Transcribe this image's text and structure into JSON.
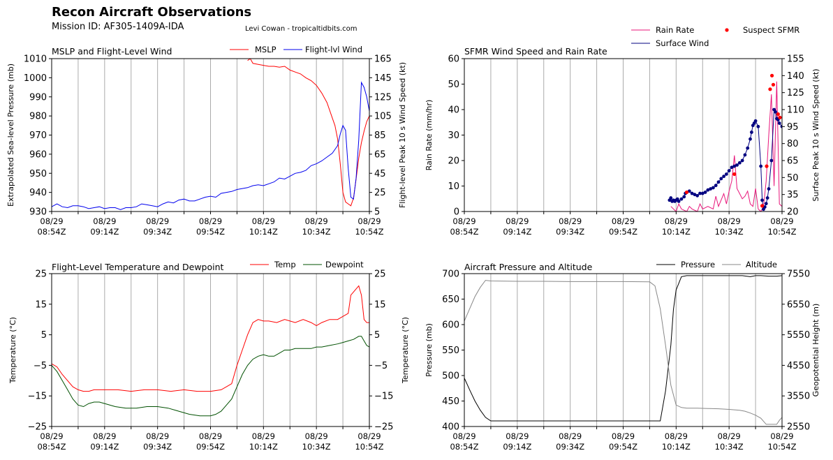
{
  "header": {
    "title": "Recon Aircraft Observations",
    "mission": "Mission ID: AF305-1409A-IDA",
    "credit": "Levi Cowan - tropicaltidbits.com"
  },
  "colors": {
    "mslp": "#ff0000",
    "wind": "#0000ee",
    "rain": "#e8157a",
    "sfmr": "#000080",
    "suspect": "#ff0000",
    "temp": "#ff0000",
    "dewpoint": "#005000",
    "pressure": "#000000",
    "altitude": "#888888",
    "grid": "#aaaaaa"
  },
  "chart_data": [
    {
      "id": "mslp_wind",
      "type": "line",
      "title": "MSLP and Flight-Level Wind",
      "xlabel": "",
      "ylabel": "Extrapolated Sea-level Pressure (mb)",
      "ylabel_right": "Flight-level Peak 10 s Wind Speed (kt)",
      "x_ticks": [
        "08/29 08:54Z",
        "08/29 09:14Z",
        "08/29 09:34Z",
        "08/29 09:54Z",
        "08/29 10:14Z",
        "08/29 10:34Z",
        "08/29 10:54Z"
      ],
      "xlim": [
        0,
        120
      ],
      "ylim": [
        930,
        1010
      ],
      "ylim_right": [
        5,
        165
      ],
      "yticks": [
        "930",
        "940",
        "950",
        "960",
        "970",
        "980",
        "990",
        "1000",
        "1010"
      ],
      "yticks_right": [
        "5",
        "25",
        "45",
        "65",
        "85",
        "105",
        "125",
        "145",
        "165"
      ],
      "legend": [
        "MSLP",
        "Flight-lvl Wind"
      ],
      "series": [
        {
          "name": "MSLP",
          "axis": "left",
          "color_key": "mslp",
          "x": [
            74,
            75,
            76,
            78,
            80,
            82,
            84,
            86,
            88,
            90,
            92,
            94,
            96,
            98,
            100,
            102,
            104,
            106,
            107,
            108,
            109,
            110,
            111,
            112,
            113,
            114,
            115,
            116,
            117,
            118,
            119,
            120
          ],
          "y": [
            1009,
            1010,
            1007.5,
            1007,
            1006.5,
            1006,
            1006,
            1005.5,
            1006,
            1004,
            1003,
            1002,
            1000,
            998.5,
            996,
            992,
            987,
            979,
            975,
            968,
            955,
            940,
            935,
            934,
            933,
            937,
            947,
            958,
            966,
            972,
            977,
            980
          ]
        },
        {
          "name": "Flight-lvl Wind",
          "axis": "right",
          "color_key": "wind",
          "x": [
            0,
            2,
            4,
            6,
            8,
            10,
            12,
            14,
            16,
            18,
            20,
            22,
            24,
            26,
            28,
            30,
            32,
            34,
            36,
            38,
            40,
            42,
            44,
            46,
            48,
            50,
            52,
            54,
            56,
            58,
            60,
            62,
            64,
            66,
            68,
            70,
            72,
            74,
            76,
            78,
            80,
            82,
            84,
            86,
            88,
            90,
            92,
            94,
            96,
            98,
            100,
            102,
            104,
            106,
            108,
            109,
            110,
            111,
            112,
            113,
            114,
            115,
            116,
            117,
            118,
            119,
            120
          ],
          "y": [
            10,
            13,
            10,
            9,
            11,
            11,
            10,
            8,
            9,
            10,
            8,
            9,
            9,
            7,
            9,
            9,
            10,
            13,
            12,
            11,
            10,
            13,
            15,
            14,
            17,
            18,
            16,
            16,
            18,
            20,
            21,
            20,
            24,
            25,
            26,
            28,
            29,
            30,
            32,
            33,
            32,
            34,
            36,
            40,
            39,
            42,
            45,
            46,
            48,
            53,
            55,
            58,
            62,
            66,
            74,
            86,
            95,
            90,
            50,
            20,
            18,
            40,
            80,
            140,
            135,
            125,
            110
          ]
        }
      ]
    },
    {
      "id": "sfmr_rain",
      "type": "line",
      "title": "SFMR Wind Speed and Rain Rate",
      "xlabel": "",
      "ylabel": "Rain Rate (mm/hr)",
      "ylabel_right": "Surface Peak 10 s Wind Speed (kt)",
      "x_ticks": [
        "08/29 08:54Z",
        "08/29 09:14Z",
        "08/29 09:34Z",
        "08/29 09:54Z",
        "08/29 10:14Z",
        "08/29 10:34Z",
        "08/29 10:54Z"
      ],
      "xlim": [
        0,
        120
      ],
      "ylim": [
        0,
        60
      ],
      "ylim_right": [
        20,
        155
      ],
      "yticks": [
        "0",
        "10",
        "20",
        "30",
        "40",
        "50",
        "60"
      ],
      "yticks_right": [
        "20",
        "35",
        "50",
        "65",
        "80",
        "95",
        "110",
        "125",
        "140",
        "155"
      ],
      "legend": [
        "Rain Rate",
        "Surface Wind",
        "Suspect SFMR"
      ],
      "series": [
        {
          "name": "Rain Rate",
          "axis": "left",
          "color_key": "rain",
          "style": "line",
          "x": [
            78,
            79,
            80,
            81,
            82,
            84,
            85,
            86,
            88,
            89,
            90,
            92,
            94,
            95,
            96,
            98,
            99,
            100,
            101,
            102,
            103,
            104,
            105,
            106,
            107,
            108,
            109,
            110,
            111,
            112,
            113,
            114,
            115,
            116,
            117,
            118,
            119,
            120
          ],
          "y": [
            2,
            1,
            0,
            3,
            1,
            0,
            2,
            1,
            0,
            3,
            1,
            2,
            1,
            6,
            2,
            7,
            3,
            8,
            12,
            22,
            9,
            7,
            5,
            6,
            8,
            3,
            2,
            9,
            1,
            0,
            2,
            12,
            30,
            46,
            10,
            51,
            3,
            2
          ]
        },
        {
          "name": "Surface Wind",
          "axis": "right",
          "color_key": "sfmr",
          "style": "dots",
          "x": [
            77.5,
            78,
            78.5,
            79,
            79.5,
            80,
            80.5,
            81,
            82,
            83,
            83.5,
            84,
            85,
            86,
            87,
            88,
            89,
            90,
            91,
            92,
            93,
            94,
            95,
            96,
            97,
            98,
            99,
            100,
            101,
            102,
            103,
            104,
            105,
            106,
            107,
            108,
            108.5,
            109,
            109.5,
            110,
            111,
            112,
            112.5,
            113,
            113.5,
            114,
            114.5,
            115,
            116,
            117,
            117.5,
            118,
            118.5,
            119,
            120
          ],
          "y": [
            30,
            32,
            29,
            30,
            29,
            30,
            31,
            29,
            31,
            33,
            36,
            37,
            38,
            36,
            35,
            34,
            36,
            36,
            37,
            39,
            40,
            41,
            43,
            46,
            49,
            51,
            53,
            56,
            59,
            60,
            61,
            63,
            65,
            70,
            76,
            84,
            90,
            96,
            98,
            100,
            95,
            60,
            30,
            22,
            24,
            27,
            32,
            40,
            65,
            110,
            108,
            102,
            101,
            98,
            95
          ]
        },
        {
          "name": "Suspect SFMR",
          "axis": "right",
          "color_key": "suspect",
          "style": "points",
          "x": [
            84,
            102,
            112.5,
            114.2,
            115.5,
            116.2,
            116.7,
            118.5,
            119.2
          ],
          "y": [
            37,
            53,
            25,
            60,
            128,
            140,
            132,
            106,
            103
          ]
        }
      ]
    },
    {
      "id": "temp_dew",
      "type": "line",
      "title": "Flight-Level Temperature and Dewpoint",
      "xlabel": "",
      "ylabel": "Temperature (°C)",
      "ylabel_right": "Temperature (°C)",
      "x_ticks": [
        "08/29 08:54Z",
        "08/29 09:14Z",
        "08/29 09:34Z",
        "08/29 09:54Z",
        "08/29 10:14Z",
        "08/29 10:34Z",
        "08/29 10:54Z"
      ],
      "xlim": [
        0,
        120
      ],
      "ylim": [
        -25,
        25
      ],
      "ylim_right": [
        -25,
        25
      ],
      "yticks": [
        "−25",
        "−15",
        "−5",
        "5",
        "15",
        "25"
      ],
      "yticks_right": [
        "−25",
        "−15",
        "−5",
        "5",
        "15",
        "25"
      ],
      "legend": [
        "Temp",
        "Dewpoint"
      ],
      "series": [
        {
          "name": "Temp",
          "axis": "left",
          "color_key": "temp",
          "x": [
            0,
            2,
            4,
            6,
            8,
            10,
            12,
            14,
            16,
            20,
            25,
            30,
            35,
            40,
            45,
            50,
            55,
            60,
            64,
            66,
            68,
            70,
            72,
            74,
            76,
            78,
            80,
            82,
            85,
            88,
            90,
            92,
            95,
            98,
            100,
            102,
            105,
            108,
            110,
            112,
            113,
            114,
            115,
            116,
            117,
            118,
            119,
            120
          ],
          "y": [
            -4.5,
            -5.5,
            -8,
            -10,
            -12,
            -13,
            -13.5,
            -13.5,
            -13,
            -13,
            -13,
            -13.5,
            -13,
            -13,
            -13.5,
            -13,
            -13.5,
            -13.5,
            -13,
            -12,
            -11,
            -5,
            0,
            5,
            9,
            10,
            9.5,
            9.5,
            9,
            10,
            9.5,
            9,
            10,
            9,
            8,
            9,
            10,
            10,
            11,
            12,
            18,
            19,
            20,
            21,
            18,
            10,
            9,
            9
          ]
        },
        {
          "name": "Dewpoint",
          "axis": "left",
          "color_key": "dewpoint",
          "x": [
            0,
            2,
            4,
            6,
            8,
            10,
            12,
            14,
            16,
            18,
            20,
            24,
            28,
            32,
            36,
            40,
            44,
            48,
            52,
            56,
            60,
            62,
            64,
            66,
            68,
            70,
            72,
            74,
            76,
            78,
            80,
            82,
            84,
            86,
            88,
            90,
            92,
            95,
            98,
            100,
            102,
            105,
            108,
            110,
            112,
            114,
            116,
            117,
            118,
            119,
            120
          ],
          "y": [
            -5,
            -7,
            -10,
            -13,
            -16,
            -18,
            -18.5,
            -17.5,
            -17,
            -17,
            -17.5,
            -18.5,
            -19,
            -19,
            -18.5,
            -18.5,
            -19,
            -20,
            -21,
            -21.5,
            -21.5,
            -21,
            -20,
            -18,
            -16,
            -12,
            -8,
            -5,
            -3,
            -2,
            -1.5,
            -2,
            -2,
            -1,
            0,
            0,
            0.5,
            0.5,
            0.5,
            1,
            1,
            1.5,
            2,
            2.5,
            3,
            3.5,
            4.5,
            4.5,
            3,
            1.5,
            1
          ]
        }
      ]
    },
    {
      "id": "pres_alt",
      "type": "line",
      "title": "Aircraft Pressure and Altitude",
      "xlabel": "",
      "ylabel": "Pressure (mb)",
      "ylabel_right": "Geopotential Height (m)",
      "x_ticks": [
        "08/29 08:54Z",
        "08/29 09:14Z",
        "08/29 09:34Z",
        "08/29 09:54Z",
        "08/29 10:14Z",
        "08/29 10:34Z",
        "08/29 10:54Z"
      ],
      "xlim": [
        0,
        120
      ],
      "ylim": [
        400,
        700
      ],
      "ylim_right": [
        2550,
        7550
      ],
      "yticks": [
        "400",
        "450",
        "500",
        "550",
        "600",
        "650",
        "700"
      ],
      "yticks_right": [
        "2550",
        "3550",
        "4550",
        "5550",
        "6550",
        "7550"
      ],
      "legend": [
        "Pressure",
        "Altitude"
      ],
      "series": [
        {
          "name": "Pressure",
          "axis": "left",
          "color_key": "pressure",
          "x": [
            0,
            2,
            4,
            6,
            8,
            10,
            20,
            30,
            40,
            50,
            60,
            70,
            72,
            74,
            76,
            78,
            79,
            80,
            82,
            84,
            90,
            95,
            100,
            105,
            108,
            110,
            112,
            115,
            118,
            120
          ],
          "y": [
            495,
            472,
            450,
            432,
            418,
            411,
            411,
            411,
            411,
            411,
            411,
            411,
            411,
            411,
            470,
            560,
            630,
            668,
            694,
            696,
            696,
            696,
            696,
            696,
            694,
            696,
            696,
            695,
            695,
            696
          ]
        },
        {
          "name": "Altitude",
          "axis": "right",
          "color_key": "altitude",
          "x": [
            0,
            2,
            4,
            6,
            8,
            10,
            20,
            30,
            40,
            50,
            60,
            70,
            72,
            74,
            76,
            78,
            80,
            82,
            84,
            88,
            92,
            96,
            100,
            104,
            106,
            108,
            110,
            112,
            114,
            116,
            118,
            119,
            120
          ],
          "y": [
            6000,
            6400,
            6800,
            7100,
            7330,
            7310,
            7300,
            7300,
            7290,
            7290,
            7290,
            7280,
            7150,
            6400,
            5200,
            3900,
            3250,
            3170,
            3150,
            3150,
            3140,
            3130,
            3110,
            3080,
            3050,
            2990,
            2920,
            2820,
            2620,
            2620,
            2620,
            2750,
            2850
          ]
        }
      ]
    }
  ]
}
